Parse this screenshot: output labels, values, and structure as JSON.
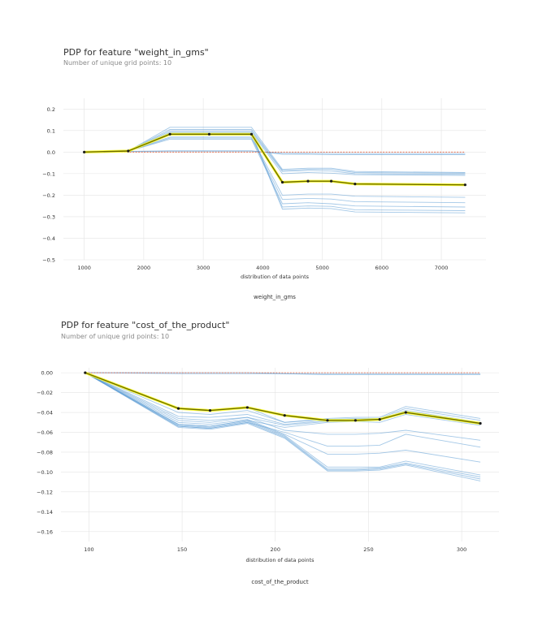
{
  "chart_data": [
    {
      "type": "line",
      "title": "PDP for feature \"weight_in_gms\"",
      "subtitle": "Number of unique grid points: 10",
      "xlabel": "distribution of data points",
      "footer_label": "weight_in_gms",
      "xlim": [
        650,
        7750
      ],
      "ylim": [
        -0.5,
        0.25
      ],
      "xticks": [
        1000,
        2000,
        3000,
        4000,
        5000,
        6000,
        7000
      ],
      "yticks": [
        0.2,
        0.1,
        0.0,
        -0.1,
        -0.2,
        -0.3,
        -0.4,
        -0.5
      ],
      "grid": true,
      "x": [
        1000,
        1740,
        2440,
        3100,
        3810,
        4330,
        4760,
        5150,
        5550,
        7400
      ],
      "pdp": [
        0.0,
        0.005,
        0.083,
        0.083,
        0.083,
        -0.14,
        -0.135,
        -0.135,
        -0.148,
        -0.152
      ],
      "ice_lines": [
        [
          0.0,
          0.005,
          0.115,
          0.115,
          0.115,
          -0.08,
          -0.075,
          -0.075,
          -0.09,
          -0.095
        ],
        [
          0.0,
          0.005,
          0.105,
          0.105,
          0.105,
          -0.085,
          -0.08,
          -0.08,
          -0.095,
          -0.098
        ],
        [
          0.0,
          0.005,
          0.098,
          0.098,
          0.098,
          -0.09,
          -0.085,
          -0.088,
          -0.1,
          -0.103
        ],
        [
          0.0,
          0.005,
          0.092,
          0.092,
          0.092,
          -0.1,
          -0.095,
          -0.098,
          -0.105,
          -0.108
        ],
        [
          0.0,
          0.003,
          0.006,
          0.006,
          0.006,
          -0.01,
          -0.01,
          -0.012,
          -0.012,
          -0.012
        ],
        [
          0.0,
          0.002,
          0.004,
          0.004,
          0.004,
          -0.005,
          -0.006,
          -0.006,
          -0.007,
          -0.007
        ],
        [
          0.0,
          0.004,
          0.07,
          0.07,
          0.07,
          -0.2,
          -0.195,
          -0.195,
          -0.205,
          -0.21
        ],
        [
          0.0,
          0.004,
          0.065,
          0.065,
          0.065,
          -0.22,
          -0.215,
          -0.218,
          -0.23,
          -0.235
        ],
        [
          0.0,
          0.004,
          0.06,
          0.06,
          0.06,
          -0.24,
          -0.235,
          -0.24,
          -0.25,
          -0.255
        ],
        [
          0.0,
          0.005,
          0.088,
          0.088,
          0.088,
          -0.255,
          -0.25,
          -0.252,
          -0.268,
          -0.272
        ],
        [
          0.0,
          0.005,
          0.085,
          0.085,
          0.085,
          -0.265,
          -0.26,
          -0.262,
          -0.278,
          -0.282
        ]
      ]
    },
    {
      "type": "line",
      "title": "PDP for feature \"cost_of_the_product\"",
      "subtitle": "Number of unique grid points: 10",
      "xlabel": "distribution of data points",
      "footer_label": "cost_of_the_product",
      "xlim": [
        85,
        320
      ],
      "ylim": [
        -0.17,
        0.005
      ],
      "xticks": [
        100,
        150,
        200,
        250,
        300
      ],
      "yticks": [
        0.0,
        -0.02,
        -0.04,
        -0.06,
        -0.08,
        -0.1,
        -0.12,
        -0.14,
        -0.16
      ],
      "grid": true,
      "x": [
        98,
        148,
        165,
        185,
        205,
        228,
        243,
        256,
        270,
        310
      ],
      "pdp": [
        0.0,
        -0.036,
        -0.038,
        -0.035,
        -0.043,
        -0.048,
        -0.048,
        -0.047,
        -0.04,
        -0.051
      ],
      "ice_lines": [
        [
          0.0,
          -0.001,
          -0.001,
          -0.001,
          -0.001,
          -0.002,
          -0.002,
          -0.002,
          -0.002,
          -0.002
        ],
        [
          0.0,
          0.0,
          0.0,
          0.0,
          -0.001,
          -0.001,
          -0.001,
          -0.001,
          -0.001,
          -0.001
        ],
        [
          0.0,
          -0.036,
          -0.038,
          -0.035,
          -0.05,
          -0.046,
          -0.045,
          -0.045,
          -0.034,
          -0.046
        ],
        [
          0.0,
          -0.04,
          -0.042,
          -0.038,
          -0.05,
          -0.047,
          -0.046,
          -0.046,
          -0.036,
          -0.048
        ],
        [
          0.0,
          -0.044,
          -0.045,
          -0.042,
          -0.052,
          -0.048,
          -0.047,
          -0.047,
          -0.038,
          -0.05
        ],
        [
          0.0,
          -0.048,
          -0.05,
          -0.045,
          -0.053,
          -0.049,
          -0.048,
          -0.048,
          -0.04,
          -0.052
        ],
        [
          0.0,
          -0.052,
          -0.054,
          -0.048,
          -0.055,
          -0.05,
          -0.049,
          -0.05,
          -0.042,
          -0.053
        ],
        [
          0.0,
          -0.054,
          -0.056,
          -0.05,
          -0.06,
          -0.074,
          -0.074,
          -0.073,
          -0.062,
          -0.075
        ],
        [
          0.0,
          -0.046,
          -0.048,
          -0.045,
          -0.058,
          -0.062,
          -0.062,
          -0.061,
          -0.058,
          -0.068
        ],
        [
          0.0,
          -0.05,
          -0.052,
          -0.047,
          -0.062,
          -0.082,
          -0.082,
          -0.081,
          -0.078,
          -0.09
        ],
        [
          0.0,
          -0.052,
          -0.054,
          -0.048,
          -0.063,
          -0.095,
          -0.095,
          -0.095,
          -0.089,
          -0.103
        ],
        [
          0.0,
          -0.053,
          -0.055,
          -0.049,
          -0.064,
          -0.097,
          -0.097,
          -0.096,
          -0.091,
          -0.105
        ],
        [
          0.0,
          -0.054,
          -0.056,
          -0.05,
          -0.065,
          -0.098,
          -0.098,
          -0.097,
          -0.092,
          -0.107
        ],
        [
          0.0,
          -0.055,
          -0.057,
          -0.051,
          -0.066,
          -0.099,
          -0.099,
          -0.098,
          -0.093,
          -0.109
        ]
      ]
    }
  ],
  "colors": {
    "pdp_line": "#6b6b00",
    "pdp_highlight": "#ffff33",
    "ice_line": "#5a9bd4",
    "zero_line": "#e05c3a",
    "grid": "#e4e4e4",
    "text": "#333333",
    "subtitle": "#8a8a8a"
  }
}
